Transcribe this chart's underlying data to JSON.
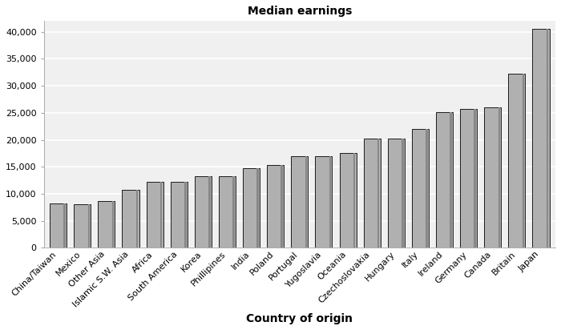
{
  "categories": [
    "China/Taiwan",
    "Mexico",
    "Other Asia",
    "Islamic S.W. Asia",
    "Africa",
    "South America",
    "Korea",
    "Phillipines",
    "India",
    "Poland",
    "Portugal",
    "Yugoslavia",
    "Oceania",
    "Czechoslovakia",
    "Hungary",
    "Italy",
    "Ireland",
    "Germany",
    "Canada",
    "Britain",
    "Japan"
  ],
  "values": [
    8200,
    8100,
    8700,
    10800,
    12200,
    12200,
    13300,
    13200,
    14700,
    15300,
    17000,
    17000,
    17500,
    20200,
    20200,
    22000,
    25200,
    25700,
    26000,
    32300,
    40500
  ],
  "bar_color": "#b0b0b0",
  "bar_edge_color": "#000000",
  "bar_dark_color": "#888888",
  "title": "Median earnings",
  "xlabel": "Country of origin",
  "ylabel": "",
  "ylim": [
    0,
    42000
  ],
  "yticks": [
    0,
    5000,
    10000,
    15000,
    20000,
    25000,
    30000,
    35000,
    40000
  ],
  "plot_bg_color": "#f0f0f0",
  "fig_bg_color": "#ffffff",
  "title_fontsize": 10,
  "xlabel_fontsize": 10,
  "tick_fontsize": 8,
  "grid_color": "#ffffff",
  "grid_linewidth": 1.2
}
